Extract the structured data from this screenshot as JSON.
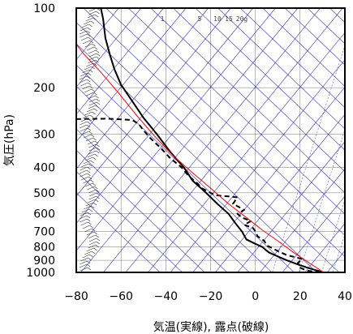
{
  "chart_data": {
    "type": "line",
    "title": "",
    "xlabel": "気温(実線), 露点(破線)",
    "ylabel": "気圧(hPa)",
    "x_range": [
      -80,
      40
    ],
    "y_range_hpa": [
      1050,
      100
    ],
    "y_scale": "log",
    "grid": true,
    "x_ticks": [
      "−80",
      "−60",
      "−40",
      "−20",
      "0",
      "20",
      "40"
    ],
    "y_ticks": [
      "100",
      "200",
      "300",
      "400",
      "500",
      "600",
      "700",
      "800",
      "900",
      "1000"
    ],
    "mixing_ratio_labels": [
      "1",
      "5",
      "10",
      "15",
      "20g"
    ],
    "colors": {
      "temperature": "#000000",
      "dewpoint": "#000000",
      "parcel": "#ff0000",
      "isotherm": "#3333cc",
      "grid": "#000000"
    },
    "series": [
      {
        "id": "temperature",
        "points": [
          [
            30.5,
            1000
          ],
          [
            25,
            970
          ],
          [
            20,
            940
          ],
          [
            14,
            900
          ],
          [
            10,
            870
          ],
          [
            6,
            840
          ],
          [
            3,
            800
          ],
          [
            0,
            780
          ],
          [
            -4,
            750
          ],
          [
            -6,
            700
          ],
          [
            -9,
            650
          ],
          [
            -12,
            600
          ],
          [
            -17,
            550
          ],
          [
            -22,
            500
          ],
          [
            -28,
            450
          ],
          [
            -32,
            400
          ],
          [
            -38,
            350
          ],
          [
            -44,
            300
          ],
          [
            -50,
            260
          ],
          [
            -55,
            225
          ],
          [
            -60,
            195
          ],
          [
            -63,
            170
          ],
          [
            -65,
            150
          ],
          [
            -67,
            130
          ],
          [
            -68,
            110
          ],
          [
            -69,
            100
          ]
        ]
      },
      {
        "id": "dewpoint",
        "points": [
          [
            29,
            1000
          ],
          [
            23,
            985
          ],
          [
            20,
            960
          ],
          [
            19,
            920
          ],
          [
            21,
            890
          ],
          [
            14,
            860
          ],
          [
            10,
            830
          ],
          [
            5,
            790
          ],
          [
            4,
            760
          ],
          [
            1,
            730
          ],
          [
            0,
            700
          ],
          [
            -1,
            680
          ],
          [
            -5,
            660
          ],
          [
            -2,
            640
          ],
          [
            -6,
            620
          ],
          [
            -8,
            600
          ],
          [
            -5,
            580
          ],
          [
            -10,
            550
          ],
          [
            -8,
            520
          ],
          [
            -18,
            510
          ],
          [
            -24,
            480
          ],
          [
            -26,
            460
          ],
          [
            -30,
            430
          ],
          [
            -33,
            400
          ],
          [
            -38,
            370
          ],
          [
            -42,
            340
          ],
          [
            -47,
            310
          ],
          [
            -50,
            290
          ],
          [
            -52,
            275
          ],
          [
            -55,
            265
          ],
          [
            -66,
            262
          ],
          [
            -81,
            263
          ]
        ]
      },
      {
        "id": "parcel",
        "points": [
          [
            30.5,
            1000
          ],
          [
            24,
            920
          ],
          [
            17,
            840
          ],
          [
            10,
            760
          ],
          [
            3,
            690
          ],
          [
            -4,
            620
          ],
          [
            -12,
            550
          ],
          [
            -20,
            480
          ],
          [
            -28,
            420
          ],
          [
            -37,
            360
          ],
          [
            -45,
            305
          ],
          [
            -53,
            255
          ],
          [
            -61,
            210
          ],
          [
            -69,
            175
          ],
          [
            -77,
            148
          ],
          [
            -82,
            130
          ]
        ]
      }
    ]
  }
}
